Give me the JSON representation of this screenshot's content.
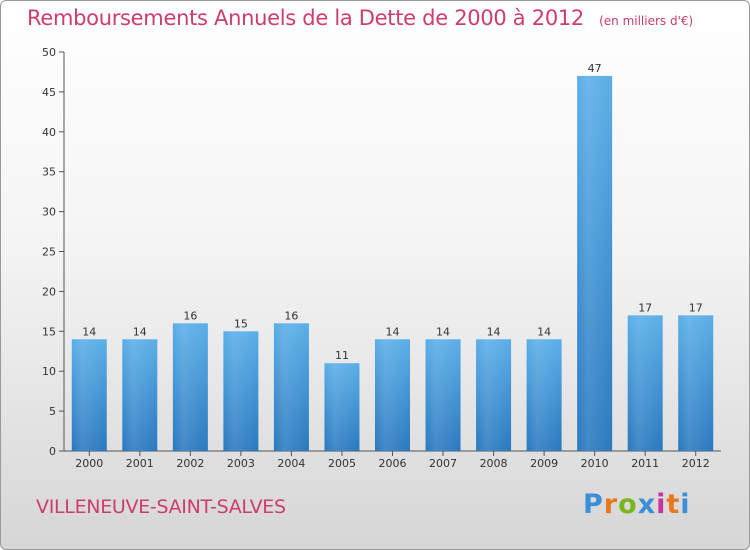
{
  "chart_data": {
    "type": "bar",
    "title": "Remboursements Annuels de la Dette de 2000 à 2012",
    "unit": "(en milliers d'€)",
    "categories": [
      "2000",
      "2001",
      "2002",
      "2003",
      "2004",
      "2005",
      "2006",
      "2007",
      "2008",
      "2009",
      "2010",
      "2011",
      "2012"
    ],
    "values": [
      14,
      14,
      16,
      15,
      16,
      11,
      14,
      14,
      14,
      14,
      47,
      17,
      17
    ],
    "ylim": [
      0,
      50
    ],
    "yticks": [
      0,
      5,
      10,
      15,
      20,
      25,
      30,
      35,
      40,
      45,
      50
    ],
    "grid": false,
    "bar_color": "#3d94dc"
  },
  "commune": "VILLENEUVE-SAINT-SALVES",
  "logo": {
    "text": "Proxiti",
    "letter_colors": [
      "#3a8fd6",
      "#e8781e",
      "#7ab51d",
      "#3a8fd6",
      "#c8359a",
      "#e8781e",
      "#3a8fd6"
    ]
  },
  "colors": {
    "accent": "#cc3d6e",
    "axis": "#555555",
    "text": "#333333"
  }
}
